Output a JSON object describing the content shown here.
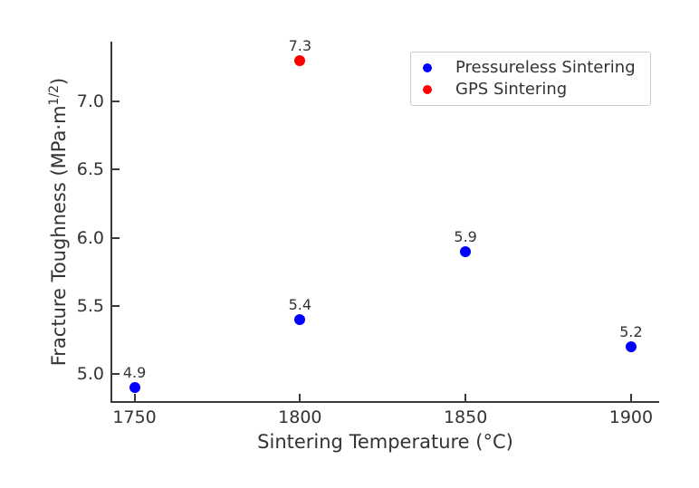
{
  "figure": {
    "background": "#ffffff",
    "text_color": "#333333",
    "axis_color": "#3a3a3a"
  },
  "labels": {
    "ylabel_prefix": "Fracture Toughness (MPa·m",
    "ylabel_sup": "1/2",
    "ylabel_suffix": ")"
  },
  "chart_data": {
    "type": "scatter",
    "title": "",
    "xlabel": "Sintering Temperature (°C)",
    "ylabel": "Fracture Toughness (MPa·m^1/2)",
    "xlim": [
      1743,
      1908.5
    ],
    "ylim": [
      4.8,
      7.44
    ],
    "grid": false,
    "spines": [
      "left",
      "bottom"
    ],
    "tick_direction": "in",
    "x_ticks": [
      {
        "value": 1750,
        "label": "1750"
      },
      {
        "value": 1800,
        "label": "1800"
      },
      {
        "value": 1850,
        "label": "1850"
      },
      {
        "value": 1900,
        "label": "1900"
      }
    ],
    "y_ticks": [
      {
        "value": 5.0,
        "label": "5.0"
      },
      {
        "value": 5.5,
        "label": "5.5"
      },
      {
        "value": 6.0,
        "label": "6.0"
      },
      {
        "value": 6.5,
        "label": "6.5"
      },
      {
        "value": 7.0,
        "label": "7.0"
      }
    ],
    "legend": {
      "position": "upper-right"
    },
    "series": [
      {
        "name": "Pressureless Sintering",
        "color": "#0000ff",
        "marker": "circle",
        "points": [
          {
            "x": 1750,
            "y": 4.9,
            "label": "4.9"
          },
          {
            "x": 1800,
            "y": 5.4,
            "label": "5.4"
          },
          {
            "x": 1850,
            "y": 5.9,
            "label": "5.9"
          },
          {
            "x": 1900,
            "y": 5.2,
            "label": "5.2"
          }
        ]
      },
      {
        "name": "GPS Sintering",
        "color": "#ff0000",
        "marker": "circle",
        "points": [
          {
            "x": 1800,
            "y": 7.3,
            "label": "7.3"
          }
        ]
      }
    ]
  }
}
